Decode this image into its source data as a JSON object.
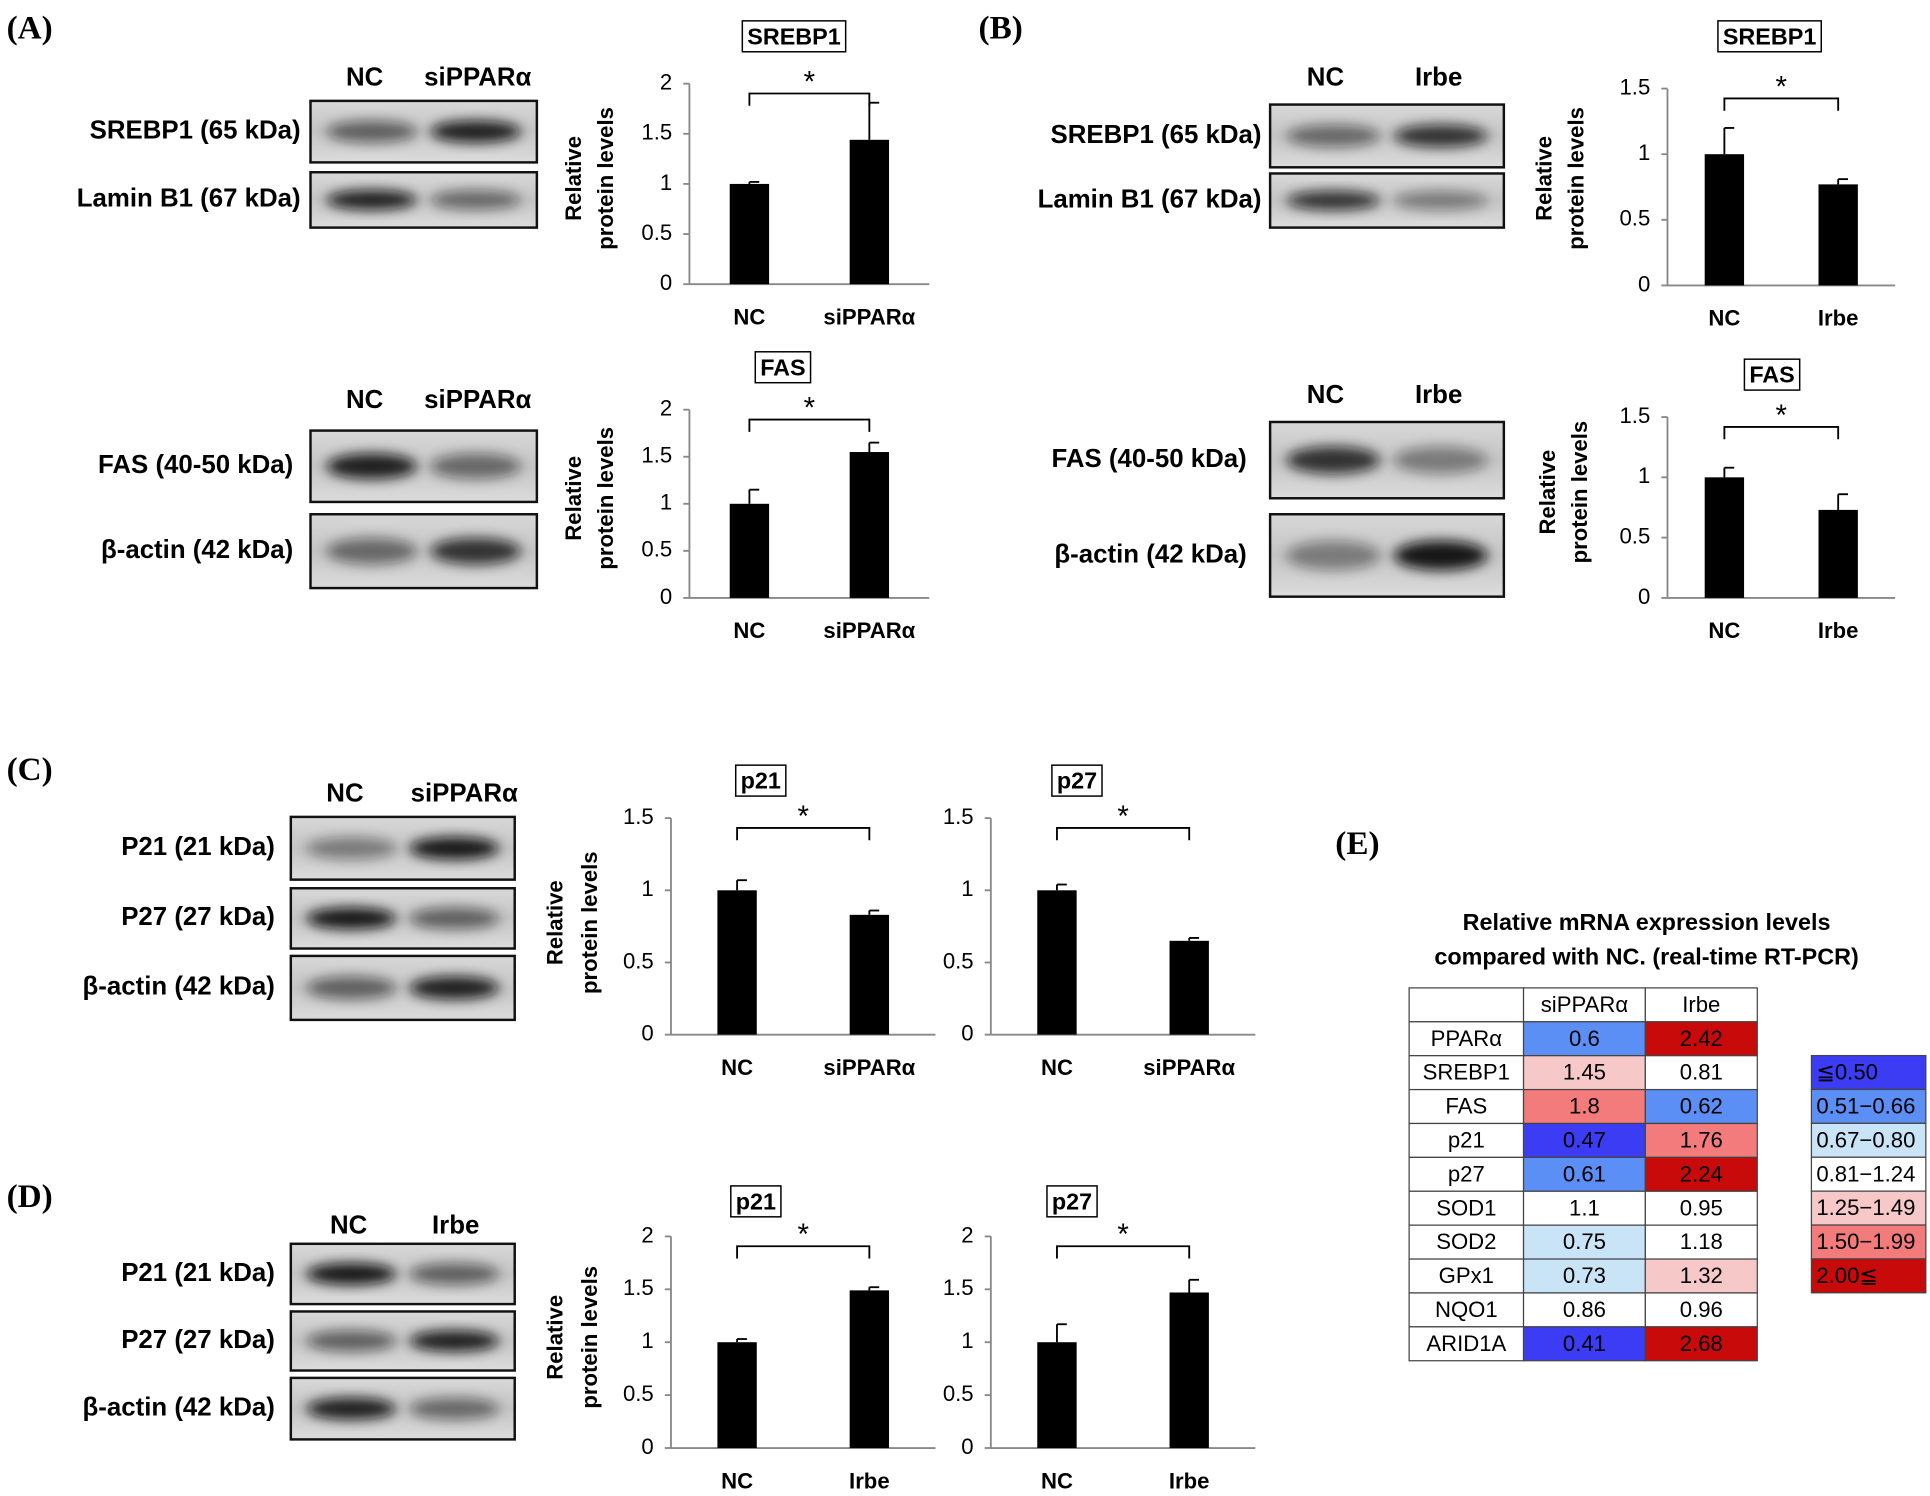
{
  "panels": [
    "(A)",
    "(B)",
    "(C)",
    "(D)",
    "(E)"
  ],
  "blots": [
    {
      "lanes": [
        "NC",
        "siPPARα"
      ],
      "rows": [
        "SREBP1 (65 kDa)",
        "Lamin B1 (67 kDa)"
      ]
    },
    {
      "lanes": [
        "NC",
        "siPPARα"
      ],
      "rows": [
        "FAS (40-50 kDa)",
        "β-actin (42 kDa)"
      ]
    },
    {
      "lanes": [
        "NC",
        "Irbe"
      ],
      "rows": [
        "SREBP1 (65 kDa)",
        "Lamin B1 (67 kDa)"
      ]
    },
    {
      "lanes": [
        "NC",
        "Irbe"
      ],
      "rows": [
        "FAS (40-50 kDa)",
        "β-actin (42 kDa)"
      ]
    },
    {
      "lanes": [
        "NC",
        "siPPARα"
      ],
      "rows": [
        "P21 (21 kDa)",
        "P27 (27 kDa)",
        "β-actin (42 kDa)"
      ]
    },
    {
      "lanes": [
        "NC",
        "Irbe"
      ],
      "rows": [
        "P21 (21 kDa)",
        "P27 (27 kDa)",
        "β-actin (42 kDa)"
      ]
    }
  ],
  "chart_data": [
    {
      "type": "bar",
      "title": "SREBP1",
      "categories": [
        "NC",
        "siPPARα"
      ],
      "values": [
        1,
        1.44
      ],
      "errors": [
        0.02,
        0.37
      ],
      "color": "#000000",
      "ylim": [
        0,
        2
      ],
      "yticks": [
        0,
        0.5,
        1,
        1.5,
        2
      ],
      "y_label": [
        "Relative",
        "protein levels"
      ],
      "annotation": "*"
    },
    {
      "type": "bar",
      "title": "FAS",
      "categories": [
        "NC",
        "siPPARα"
      ],
      "values": [
        1,
        1.55
      ],
      "errors": [
        0.15,
        0.1
      ],
      "color": "#000000",
      "ylim": [
        0,
        2
      ],
      "yticks": [
        0,
        0.5,
        1,
        1.5,
        2
      ],
      "y_label": [
        "Relative",
        "protein levels"
      ],
      "annotation": "*"
    },
    {
      "type": "bar",
      "title": "SREBP1",
      "categories": [
        "NC",
        "Irbe"
      ],
      "values": [
        1,
        0.77
      ],
      "errors": [
        0.2,
        0.04
      ],
      "color": "#000000",
      "ylim": [
        0,
        1.5
      ],
      "yticks": [
        0,
        0.5,
        1,
        1.5
      ],
      "y_label": [
        "Relative",
        "protein levels"
      ],
      "annotation": "*"
    },
    {
      "type": "bar",
      "title": "FAS",
      "categories": [
        "NC",
        "Irbe"
      ],
      "values": [
        1,
        0.73
      ],
      "errors": [
        0.08,
        0.13
      ],
      "color": "#000000",
      "ylim": [
        0,
        1.5
      ],
      "yticks": [
        0,
        0.5,
        1,
        1.5
      ],
      "y_label": [
        "Relative",
        "protein levels"
      ],
      "annotation": "*"
    },
    {
      "type": "bar",
      "title": "p21",
      "categories": [
        "NC",
        "siPPARα"
      ],
      "values": [
        1,
        0.83
      ],
      "errors": [
        0.07,
        0.03
      ],
      "color": "#000000",
      "ylim": [
        0,
        1.5
      ],
      "yticks": [
        0,
        0.5,
        1,
        1.5
      ],
      "y_label": [
        "Relative",
        "protein levels"
      ],
      "annotation": "*"
    },
    {
      "type": "bar",
      "title": "p27",
      "categories": [
        "NC",
        "siPPARα"
      ],
      "values": [
        1,
        0.65
      ],
      "errors": [
        0.04,
        0.02
      ],
      "color": "#000000",
      "ylim": [
        0,
        1.5
      ],
      "yticks": [
        0,
        0.5,
        1,
        1.5
      ],
      "annotation": "*"
    },
    {
      "type": "bar",
      "title": "p21",
      "categories": [
        "NC",
        "Irbe"
      ],
      "values": [
        1,
        1.49
      ],
      "errors": [
        0.03,
        0.03
      ],
      "color": "#000000",
      "ylim": [
        0,
        2
      ],
      "yticks": [
        0,
        0.5,
        1,
        1.5,
        2
      ],
      "y_label": [
        "Relative",
        "protein levels"
      ],
      "annotation": "*"
    },
    {
      "type": "bar",
      "title": "p27",
      "categories": [
        "NC",
        "Irbe"
      ],
      "values": [
        1,
        1.47
      ],
      "errors": [
        0.17,
        0.12
      ],
      "color": "#000000",
      "ylim": [
        0,
        2
      ],
      "yticks": [
        0,
        0.5,
        1,
        1.5,
        2
      ],
      "annotation": "*"
    }
  ],
  "table": {
    "title": [
      "Relative mRNA expression levels",
      "compared with NC. (real-time RT-PCR)"
    ],
    "columns": [
      "siPPARα",
      "Irbe"
    ],
    "rows": [
      {
        "gene": "PPARα",
        "values": [
          0.6,
          2.42
        ],
        "colors": [
          "#5b8ff5",
          "#c80a0a"
        ]
      },
      {
        "gene": "SREBP1",
        "values": [
          1.45,
          0.81
        ],
        "colors": [
          "#f7c8c8",
          "#ffffff"
        ]
      },
      {
        "gene": "FAS",
        "values": [
          1.8,
          0.62
        ],
        "colors": [
          "#f47b7b",
          "#5b8ff5"
        ]
      },
      {
        "gene": "p21",
        "values": [
          0.47,
          1.76
        ],
        "colors": [
          "#3c3cf5",
          "#f47b7b"
        ]
      },
      {
        "gene": "p27",
        "values": [
          0.61,
          2.24
        ],
        "colors": [
          "#5b8ff5",
          "#c80a0a"
        ]
      },
      {
        "gene": "SOD1",
        "values": [
          1.1,
          0.95
        ],
        "colors": [
          "#ffffff",
          "#ffffff"
        ]
      },
      {
        "gene": "SOD2",
        "values": [
          0.75,
          1.18
        ],
        "colors": [
          "#c9e4f7",
          "#ffffff"
        ]
      },
      {
        "gene": "GPx1",
        "values": [
          0.73,
          1.32
        ],
        "colors": [
          "#c9e4f7",
          "#f7c8c8"
        ]
      },
      {
        "gene": "NQO1",
        "values": [
          0.86,
          0.96
        ],
        "colors": [
          "#ffffff",
          "#ffffff"
        ]
      },
      {
        "gene": "ARID1A",
        "values": [
          0.41,
          2.68
        ],
        "colors": [
          "#3c3cf5",
          "#c80a0a"
        ]
      }
    ]
  },
  "legend": [
    {
      "label": "≦0.50",
      "color": "#3c3cf5"
    },
    {
      "label": "0.51−0.66",
      "color": "#5b8ff5"
    },
    {
      "label": "0.67−0.80",
      "color": "#c9e4f7"
    },
    {
      "label": "0.81−1.24",
      "color": "#ffffff"
    },
    {
      "label": "1.25−1.49",
      "color": "#f7c8c8"
    },
    {
      "label": "1.50−1.99",
      "color": "#f47b7b"
    },
    {
      "label": "2.00≦",
      "color": "#c80a0a"
    }
  ]
}
